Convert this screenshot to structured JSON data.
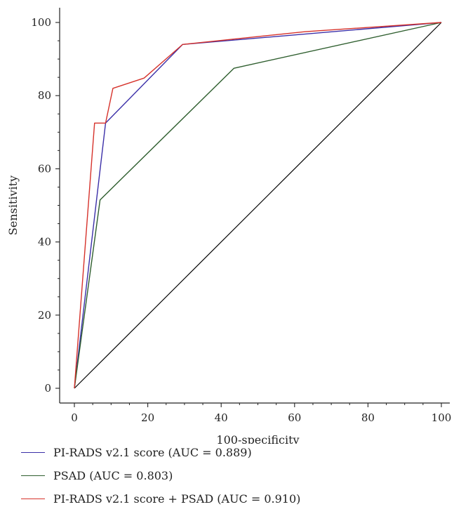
{
  "chart_data": {
    "type": "line",
    "title": "",
    "xlabel": "100-specificity",
    "ylabel": "Sensitivity",
    "xlim": [
      0,
      100
    ],
    "ylim": [
      0,
      100
    ],
    "xticks": [
      0,
      20,
      40,
      60,
      80,
      100
    ],
    "yticks": [
      0,
      20,
      40,
      60,
      80,
      100
    ],
    "grid": false,
    "legend_position": "bottom",
    "reference_line": {
      "x": [
        0,
        100
      ],
      "y": [
        0,
        100
      ],
      "color": "#000000"
    },
    "series": [
      {
        "name": "PI-RADS v2.1 score (AUC = 0.889)",
        "color": "#3b2fa8",
        "x": [
          0,
          8.5,
          29.5,
          100
        ],
        "y": [
          0,
          72.5,
          94,
          100
        ]
      },
      {
        "name": "PSAD (AUC = 0.803)",
        "color": "#2e5e2e",
        "x": [
          0,
          7,
          43.5,
          100
        ],
        "y": [
          0,
          51.5,
          87.5,
          100
        ]
      },
      {
        "name": "PI-RADS v2.1 score + PSAD (AUC = 0.910)",
        "color": "#d6322b",
        "x": [
          0,
          5.5,
          8.5,
          10.5,
          19,
          29.5,
          63,
          100
        ],
        "y": [
          0,
          72.5,
          72.5,
          82,
          84.8,
          94,
          97.5,
          100
        ]
      }
    ]
  }
}
